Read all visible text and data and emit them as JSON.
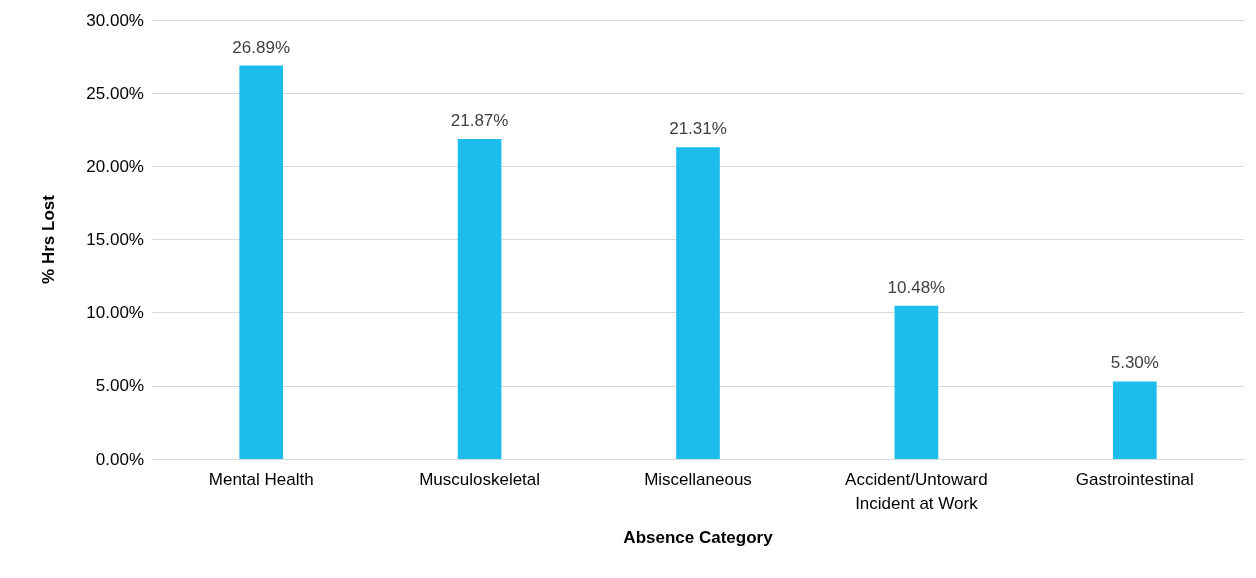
{
  "chart_data": {
    "type": "bar",
    "xlabel": "Absence Category",
    "ylabel": "% Hrs Lost",
    "categories": [
      "Mental Health",
      "Musculoskeletal",
      "Miscellaneous",
      "Accident/Untoward\nIncident at Work",
      "Gastrointestinal"
    ],
    "values": [
      26.89,
      21.87,
      21.31,
      10.48,
      5.3
    ],
    "value_labels": [
      "26.89%",
      "21.87%",
      "21.31%",
      "10.48%",
      "5.30%"
    ],
    "color": "#1cbcec",
    "ylim": [
      0,
      30
    ],
    "yticks": [
      {
        "value": 0,
        "label": "0.00%"
      },
      {
        "value": 5,
        "label": "5.00%"
      },
      {
        "value": 10,
        "label": "10.00%"
      },
      {
        "value": 15,
        "label": "15.00%"
      },
      {
        "value": 20,
        "label": "20.00%"
      },
      {
        "value": 25,
        "label": "25.00%"
      },
      {
        "value": 30,
        "label": "30.00%"
      }
    ],
    "grid": "y"
  }
}
